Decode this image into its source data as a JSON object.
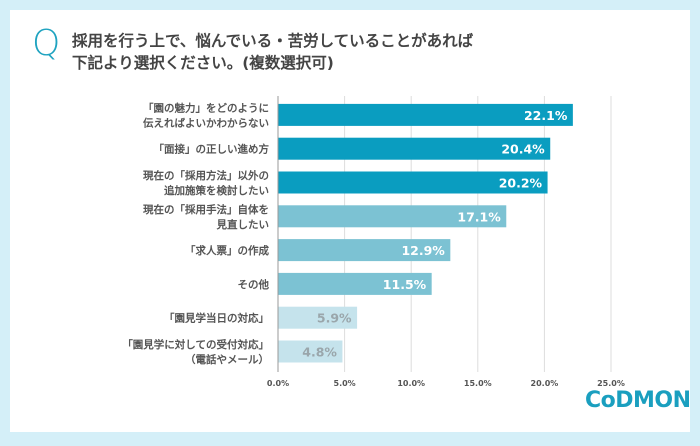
{
  "header": {
    "q_mark": "Q",
    "title_line1": "採用を行う上で、悩んでいる・苦労していることがあれば",
    "title_line2": "下記より選択ください。(複数選択可)"
  },
  "logo": {
    "text": "CoDMON"
  },
  "colors": {
    "dark": "#0a9dc0",
    "mid": "#7cc2d3",
    "light": "#c5e3ec",
    "background": "#d4eff8"
  },
  "chart_data": {
    "type": "bar",
    "orientation": "horizontal",
    "categories": [
      [
        "「園の魅力」をどのように",
        "伝えればよいかわからない"
      ],
      [
        "「面接」の正しい進め方"
      ],
      [
        "現在の「採用方法」以外の",
        "追加施策を検討したい"
      ],
      [
        "現在の「採用手法」自体を",
        "見直したい"
      ],
      [
        "「求人票」の作成"
      ],
      [
        "その他"
      ],
      [
        "「園見学当日の対応」"
      ],
      [
        "「園見学に対しての受付対応」",
        "（電話やメール）"
      ]
    ],
    "values": [
      22.1,
      20.4,
      20.2,
      17.1,
      12.9,
      11.5,
      5.9,
      4.8
    ],
    "data_labels": [
      "22.1%",
      "20.4%",
      "20.2%",
      "17.1%",
      "12.9%",
      "11.5%",
      "5.9%",
      "4.8%"
    ],
    "color_groups": [
      "dark",
      "dark",
      "dark",
      "mid",
      "mid",
      "mid",
      "light",
      "light"
    ],
    "xlim": [
      0,
      25
    ],
    "xticks": [
      "0.0%",
      "5.0%",
      "10.0%",
      "15.0%",
      "20.0%",
      "25.0%"
    ],
    "grid": true
  }
}
